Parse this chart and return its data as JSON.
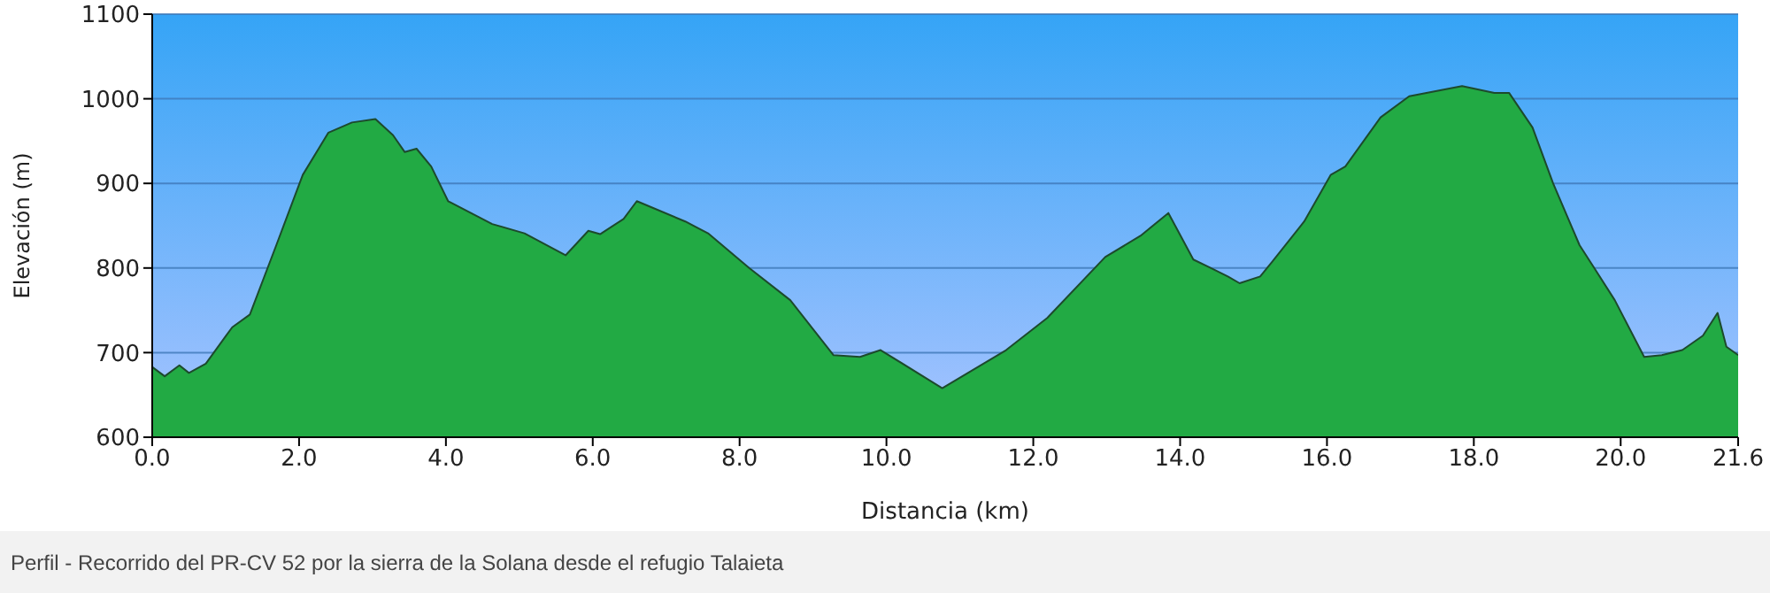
{
  "chart_data": {
    "type": "area",
    "xlabel": "Distancia (km)",
    "ylabel": "Elevación (m)",
    "annotations": [
      "Perfil - Recorrido del PR-CV 52 por la sierra de la Solana desde el refugio Talaieta"
    ],
    "series": [
      {
        "color": "#22aa44",
        "x": [
          0,
          0.17,
          0.37,
          0.5,
          0.73,
          1.09,
          1.33,
          1.69,
          2.05,
          2.4,
          2.72,
          3.04,
          3.28,
          3.44,
          3.6,
          3.8,
          4.03,
          4.63,
          5.07,
          5.63,
          5.94,
          6.1,
          6.42,
          6.6,
          7.26,
          7.57,
          8.13,
          8.69,
          9.28,
          9.64,
          9.92,
          10.76,
          11.63,
          12.19,
          12.98,
          13.46,
          13.84,
          14.18,
          14.42,
          14.65,
          14.81,
          15.09,
          15.25,
          15.69,
          16.05,
          16.25,
          16.73,
          17.12,
          17.84,
          18.28,
          18.48,
          18.8,
          19.08,
          19.44,
          19.64,
          19.92,
          20.32,
          20.56,
          20.84,
          21.12,
          21.32,
          21.44,
          21.6
        ],
        "values": [
          683,
          672,
          685,
          676,
          687,
          730,
          745,
          827,
          910,
          960,
          972,
          976,
          957,
          937,
          941,
          920,
          879,
          852,
          841,
          815,
          844,
          840,
          858,
          879,
          855,
          841,
          800,
          762,
          697,
          695,
          703,
          658,
          703,
          741,
          813,
          838,
          865,
          810,
          800,
          790,
          782,
          790,
          807,
          855,
          910,
          920,
          978,
          1003,
          1015,
          1007,
          1007,
          966,
          900,
          827,
          800,
          762,
          695,
          697,
          703,
          720,
          747,
          707,
          697
        ]
      }
    ],
    "xlim": [
      0,
      21.6
    ],
    "xticks": [
      {
        "value": 0,
        "label": "0.0"
      },
      {
        "value": 2,
        "label": "2.0"
      },
      {
        "value": 4,
        "label": "4.0"
      },
      {
        "value": 6,
        "label": "6.0"
      },
      {
        "value": 8,
        "label": "8.0"
      },
      {
        "value": 10,
        "label": "10.0"
      },
      {
        "value": 12,
        "label": "12.0"
      },
      {
        "value": 14,
        "label": "14.0"
      },
      {
        "value": 16,
        "label": "16.0"
      },
      {
        "value": 18,
        "label": "18.0"
      },
      {
        "value": 20,
        "label": "20.0"
      },
      {
        "value": 21.6,
        "label": "21.6"
      }
    ],
    "ylim": [
      600,
      1100
    ],
    "yticks": [
      600,
      700,
      800,
      900,
      1000,
      1100
    ],
    "grid": "y"
  }
}
